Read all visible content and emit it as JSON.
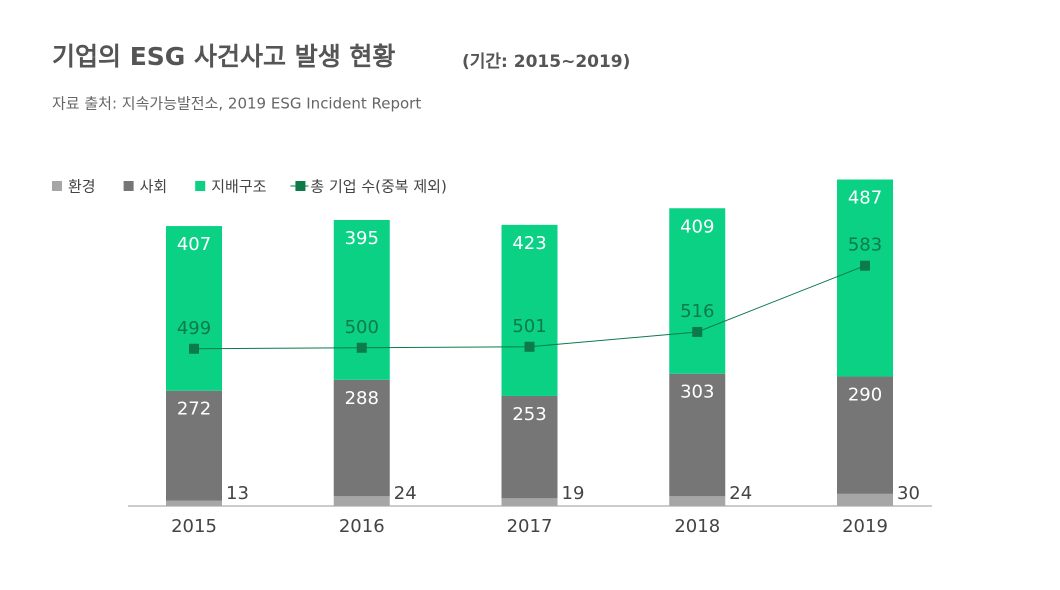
{
  "chart_data": {
    "type": "stacked-bar-line",
    "title": "기업의 ESG 사건사고 발생 현황",
    "period": "(기간: 2015~2019)",
    "source": "자료 출처: 지속가능발전소, 2019 ESG Incident Report",
    "categories": [
      "2015",
      "2016",
      "2017",
      "2018",
      "2019"
    ],
    "series": [
      {
        "name": "환경",
        "color": "#a6a6a6",
        "values": [
          13,
          24,
          19,
          24,
          30
        ]
      },
      {
        "name": "사회",
        "color": "#767676",
        "values": [
          272,
          288,
          253,
          303,
          290
        ]
      },
      {
        "name": "지배구조",
        "color": "#0ad184",
        "values": [
          407,
          395,
          423,
          409,
          487
        ]
      },
      {
        "name": "총 기업 수(중복 제외)",
        "color": "#0d7a4a",
        "axis": "y2",
        "values": [
          499,
          500,
          501,
          516,
          583
        ]
      }
    ],
    "ylim": [
      0,
      880
    ],
    "y2lim": [
      340,
      700
    ]
  }
}
